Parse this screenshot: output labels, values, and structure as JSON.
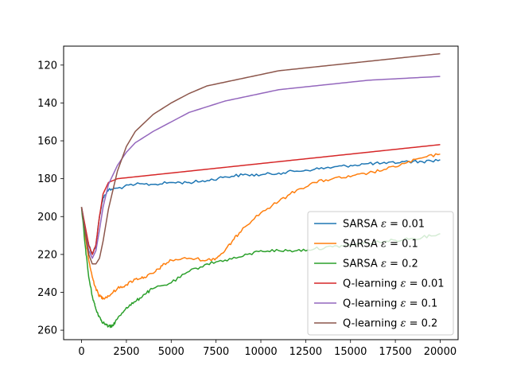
{
  "chart_data": {
    "type": "line",
    "title": "",
    "xlabel": "",
    "ylabel": "",
    "xlim": [
      -1000,
      21000
    ],
    "ylim": [
      265,
      110
    ],
    "y_inverted": true,
    "grid": false,
    "legend_position": "lower right",
    "xticks": [
      0,
      2500,
      5000,
      7500,
      10000,
      12500,
      15000,
      17500,
      20000
    ],
    "xtick_labels": [
      "0",
      "2500",
      "5000",
      "7500",
      "10000",
      "12500",
      "15000",
      "17500",
      "20000"
    ],
    "yticks": [
      120,
      140,
      160,
      180,
      200,
      220,
      240,
      260
    ],
    "ytick_labels": [
      "120",
      "140",
      "160",
      "180",
      "200",
      "220",
      "240",
      "260"
    ],
    "series": [
      {
        "name": "SARSA ε = 0.01",
        "legend_prefix": "SARSA ",
        "legend_eps": "0.01",
        "color": "#1f77b4",
        "points": [
          [
            0,
            195
          ],
          [
            200,
            207
          ],
          [
            400,
            215
          ],
          [
            600,
            220
          ],
          [
            800,
            215
          ],
          [
            1000,
            200
          ],
          [
            1200,
            190
          ],
          [
            1500,
            186
          ],
          [
            2000,
            185
          ],
          [
            3000,
            183
          ],
          [
            4000,
            183
          ],
          [
            5000,
            182
          ],
          [
            6000,
            182
          ],
          [
            7000,
            181
          ],
          [
            8000,
            179
          ],
          [
            9000,
            178
          ],
          [
            10000,
            178
          ],
          [
            11000,
            177
          ],
          [
            12000,
            176
          ],
          [
            13000,
            175
          ],
          [
            14000,
            174
          ],
          [
            15000,
            173
          ],
          [
            16000,
            172
          ],
          [
            17000,
            172
          ],
          [
            18000,
            171
          ],
          [
            19000,
            171
          ],
          [
            20000,
            170
          ]
        ]
      },
      {
        "name": "SARSA ε = 0.1",
        "legend_prefix": "SARSA ",
        "legend_eps": "0.1",
        "color": "#ff7f0e",
        "points": [
          [
            0,
            195
          ],
          [
            200,
            210
          ],
          [
            400,
            223
          ],
          [
            600,
            232
          ],
          [
            800,
            238
          ],
          [
            1000,
            242
          ],
          [
            1200,
            243
          ],
          [
            1500,
            242
          ],
          [
            2000,
            238
          ],
          [
            2500,
            236
          ],
          [
            3000,
            233
          ],
          [
            3500,
            232
          ],
          [
            4000,
            230
          ],
          [
            4500,
            226
          ],
          [
            5000,
            223
          ],
          [
            6000,
            222
          ],
          [
            7000,
            223
          ],
          [
            7500,
            222
          ],
          [
            8000,
            218
          ],
          [
            8500,
            212
          ],
          [
            9000,
            206
          ],
          [
            10000,
            198
          ],
          [
            11000,
            192
          ],
          [
            12000,
            186
          ],
          [
            13000,
            182
          ],
          [
            14000,
            180
          ],
          [
            15000,
            179
          ],
          [
            16000,
            177
          ],
          [
            17000,
            175
          ],
          [
            18000,
            172
          ],
          [
            19000,
            169
          ],
          [
            20000,
            167
          ]
        ]
      },
      {
        "name": "SARSA ε = 0.2",
        "legend_prefix": "SARSA ",
        "legend_eps": "0.2",
        "color": "#2ca02c",
        "points": [
          [
            0,
            195
          ],
          [
            200,
            215
          ],
          [
            400,
            232
          ],
          [
            600,
            242
          ],
          [
            800,
            249
          ],
          [
            1000,
            253
          ],
          [
            1200,
            256
          ],
          [
            1500,
            258
          ],
          [
            1700,
            258
          ],
          [
            2000,
            254
          ],
          [
            2500,
            248
          ],
          [
            3000,
            245
          ],
          [
            3500,
            241
          ],
          [
            4000,
            238
          ],
          [
            5000,
            235
          ],
          [
            6000,
            229
          ],
          [
            7000,
            225
          ],
          [
            8000,
            223
          ],
          [
            9000,
            221
          ],
          [
            10000,
            218
          ],
          [
            11000,
            218
          ],
          [
            12000,
            218
          ],
          [
            13000,
            217
          ],
          [
            14000,
            216
          ],
          [
            15000,
            215
          ],
          [
            16000,
            214
          ],
          [
            17000,
            213
          ],
          [
            18000,
            212
          ],
          [
            19000,
            211
          ],
          [
            20000,
            209
          ]
        ]
      },
      {
        "name": "Q-learning ε = 0.01",
        "legend_prefix": "Q-learning ",
        "legend_eps": "0.01",
        "color": "#d62728",
        "points": [
          [
            0,
            195
          ],
          [
            200,
            205
          ],
          [
            400,
            215
          ],
          [
            600,
            220
          ],
          [
            800,
            215
          ],
          [
            1000,
            200
          ],
          [
            1200,
            188
          ],
          [
            1500,
            182
          ],
          [
            2000,
            180
          ],
          [
            3000,
            179
          ],
          [
            4000,
            178
          ],
          [
            5000,
            177
          ],
          [
            6000,
            176
          ],
          [
            7000,
            175
          ],
          [
            8000,
            174
          ],
          [
            9000,
            173
          ],
          [
            10000,
            172
          ],
          [
            11000,
            171
          ],
          [
            12000,
            170
          ],
          [
            13000,
            169
          ],
          [
            14000,
            168
          ],
          [
            15000,
            167
          ],
          [
            16000,
            166
          ],
          [
            17000,
            165
          ],
          [
            18000,
            164
          ],
          [
            19000,
            163
          ],
          [
            20000,
            162
          ]
        ]
      },
      {
        "name": "Q-learning ε = 0.1",
        "legend_prefix": "Q-learning ",
        "legend_eps": "0.1",
        "color": "#9467bd",
        "points": [
          [
            0,
            195
          ],
          [
            200,
            208
          ],
          [
            400,
            218
          ],
          [
            600,
            222
          ],
          [
            800,
            218
          ],
          [
            1000,
            207
          ],
          [
            1200,
            195
          ],
          [
            1500,
            183
          ],
          [
            2000,
            173
          ],
          [
            2500,
            166
          ],
          [
            3000,
            161
          ],
          [
            4000,
            155
          ],
          [
            5000,
            150
          ],
          [
            6000,
            145
          ],
          [
            7000,
            142
          ],
          [
            8000,
            139
          ],
          [
            9000,
            137
          ],
          [
            10000,
            135
          ],
          [
            11000,
            133
          ],
          [
            12000,
            132
          ],
          [
            13000,
            131
          ],
          [
            14000,
            130
          ],
          [
            15000,
            129
          ],
          [
            16000,
            128
          ],
          [
            17000,
            127.5
          ],
          [
            18000,
            127
          ],
          [
            19000,
            126.5
          ],
          [
            20000,
            126
          ]
        ]
      },
      {
        "name": "Q-learning ε = 0.2",
        "legend_prefix": "Q-learning ",
        "legend_eps": "0.2",
        "color": "#8c564b",
        "points": [
          [
            0,
            195
          ],
          [
            200,
            208
          ],
          [
            400,
            220
          ],
          [
            600,
            225
          ],
          [
            800,
            225
          ],
          [
            1000,
            222
          ],
          [
            1200,
            213
          ],
          [
            1500,
            196
          ],
          [
            2000,
            176
          ],
          [
            2500,
            163
          ],
          [
            3000,
            155
          ],
          [
            4000,
            146
          ],
          [
            5000,
            140
          ],
          [
            6000,
            135
          ],
          [
            7000,
            131
          ],
          [
            8000,
            129
          ],
          [
            9000,
            127
          ],
          [
            10000,
            125
          ],
          [
            11000,
            123
          ],
          [
            12000,
            122
          ],
          [
            13000,
            121
          ],
          [
            14000,
            120
          ],
          [
            15000,
            119
          ],
          [
            16000,
            118
          ],
          [
            17000,
            117
          ],
          [
            18000,
            116
          ],
          [
            19000,
            115
          ],
          [
            20000,
            114
          ]
        ]
      }
    ]
  }
}
